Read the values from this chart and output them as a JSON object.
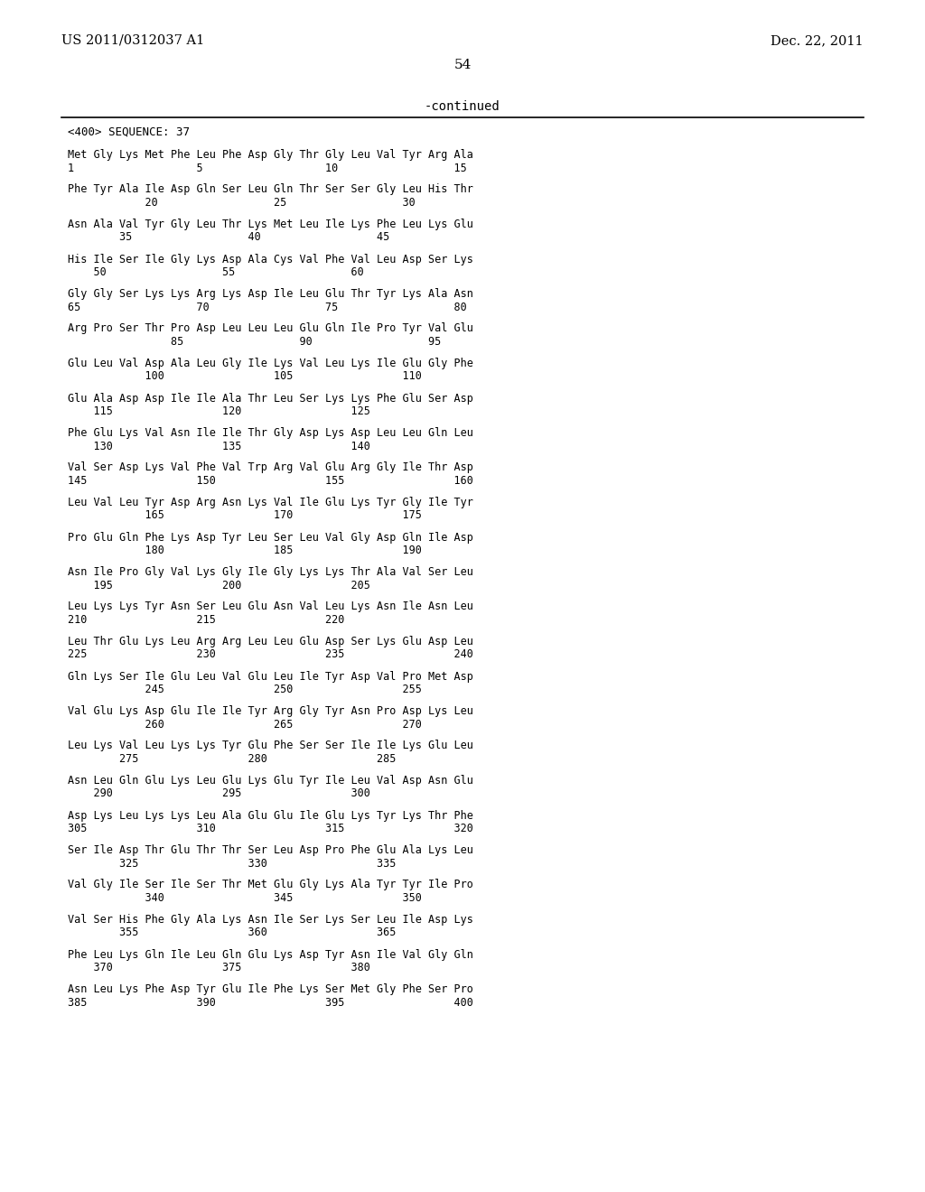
{
  "header_left": "US 2011/0312037 A1",
  "header_right": "Dec. 22, 2011",
  "page_number": "54",
  "continued_text": "-continued",
  "sequence_header": "<400> SEQUENCE: 37",
  "sequence_blocks": [
    [
      "Met Gly Lys Met Phe Leu Phe Asp Gly Thr Gly Leu Val Tyr Arg Ala",
      "1                   5                   10                  15"
    ],
    [
      "Phe Tyr Ala Ile Asp Gln Ser Leu Gln Thr Ser Ser Gly Leu His Thr",
      "            20                  25                  30"
    ],
    [
      "Asn Ala Val Tyr Gly Leu Thr Lys Met Leu Ile Lys Phe Leu Lys Glu",
      "        35                  40                  45"
    ],
    [
      "His Ile Ser Ile Gly Lys Asp Ala Cys Val Phe Val Leu Asp Ser Lys",
      "    50                  55                  60"
    ],
    [
      "Gly Gly Ser Lys Lys Arg Lys Asp Ile Leu Glu Thr Tyr Lys Ala Asn",
      "65                  70                  75                  80"
    ],
    [
      "Arg Pro Ser Thr Pro Asp Leu Leu Leu Glu Gln Ile Pro Tyr Val Glu",
      "                85                  90                  95"
    ],
    [
      "Glu Leu Val Asp Ala Leu Gly Ile Lys Val Leu Lys Ile Glu Gly Phe",
      "            100                 105                 110"
    ],
    [
      "Glu Ala Asp Asp Ile Ile Ala Thr Leu Ser Lys Lys Phe Glu Ser Asp",
      "    115                 120                 125"
    ],
    [
      "Phe Glu Lys Val Asn Ile Ile Thr Gly Asp Lys Asp Leu Leu Gln Leu",
      "    130                 135                 140"
    ],
    [
      "Val Ser Asp Lys Val Phe Val Trp Arg Val Glu Arg Gly Ile Thr Asp",
      "145                 150                 155                 160"
    ],
    [
      "Leu Val Leu Tyr Asp Arg Asn Lys Val Ile Glu Lys Tyr Gly Ile Tyr",
      "            165                 170                 175"
    ],
    [
      "Pro Glu Gln Phe Lys Asp Tyr Leu Ser Leu Val Gly Asp Gln Ile Asp",
      "            180                 185                 190"
    ],
    [
      "Asn Ile Pro Gly Val Lys Gly Ile Gly Lys Lys Thr Ala Val Ser Leu",
      "    195                 200                 205"
    ],
    [
      "Leu Lys Lys Tyr Asn Ser Leu Glu Asn Val Leu Lys Asn Ile Asn Leu",
      "210                 215                 220"
    ],
    [
      "Leu Thr Glu Lys Leu Arg Arg Leu Leu Glu Asp Ser Lys Glu Asp Leu",
      "225                 230                 235                 240"
    ],
    [
      "Gln Lys Ser Ile Glu Leu Val Glu Leu Ile Tyr Asp Val Pro Met Asp",
      "            245                 250                 255"
    ],
    [
      "Val Glu Lys Asp Glu Ile Ile Tyr Arg Gly Tyr Asn Pro Asp Lys Leu",
      "            260                 265                 270"
    ],
    [
      "Leu Lys Val Leu Lys Lys Tyr Glu Phe Ser Ser Ile Ile Lys Glu Leu",
      "        275                 280                 285"
    ],
    [
      "Asn Leu Gln Glu Lys Leu Glu Lys Glu Tyr Ile Leu Val Asp Asn Glu",
      "    290                 295                 300"
    ],
    [
      "Asp Lys Leu Lys Lys Leu Ala Glu Glu Ile Glu Lys Tyr Lys Thr Phe",
      "305                 310                 315                 320"
    ],
    [
      "Ser Ile Asp Thr Glu Thr Thr Ser Leu Asp Pro Phe Glu Ala Lys Leu",
      "        325                 330                 335"
    ],
    [
      "Val Gly Ile Ser Ile Ser Thr Met Glu Gly Lys Ala Tyr Tyr Ile Pro",
      "            340                 345                 350"
    ],
    [
      "Val Ser His Phe Gly Ala Lys Asn Ile Ser Lys Ser Leu Ile Asp Lys",
      "        355                 360                 365"
    ],
    [
      "Phe Leu Lys Gln Ile Leu Gln Glu Lys Asp Tyr Asn Ile Val Gly Gln",
      "    370                 375                 380"
    ],
    [
      "Asn Leu Lys Phe Asp Tyr Glu Ile Phe Lys Ser Met Gly Phe Ser Pro",
      "385                 390                 395                 400"
    ]
  ]
}
